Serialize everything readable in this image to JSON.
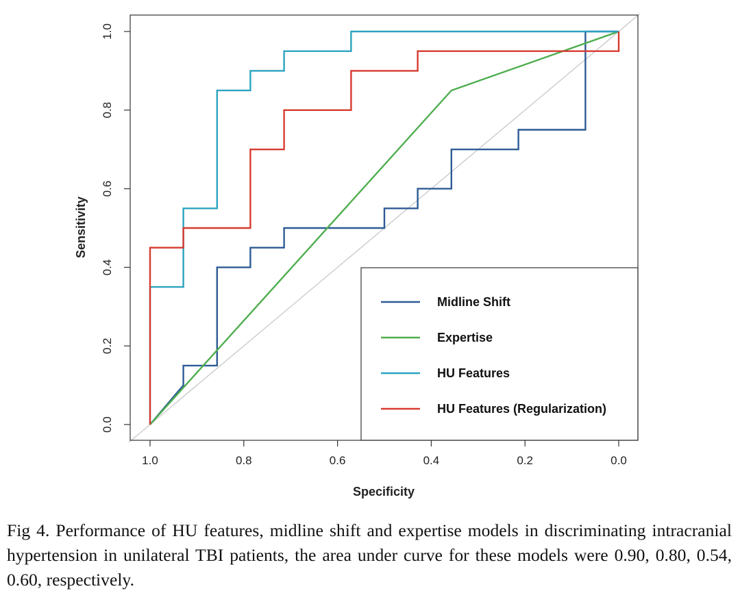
{
  "chart_data": {
    "type": "line",
    "xlabel": "Specificity",
    "ylabel": "Sensitivity",
    "xlim": [
      1.0,
      0.0
    ],
    "ylim": [
      0.0,
      1.0
    ],
    "x_reversed": true,
    "x_ticks": [
      "1.0",
      "0.8",
      "0.6",
      "0.4",
      "0.2",
      "0.0"
    ],
    "y_ticks": [
      "0.0",
      "0.2",
      "0.4",
      "0.6",
      "0.8",
      "1.0"
    ],
    "grid": false,
    "reference_line": {
      "from": [
        1.0,
        0.0
      ],
      "to": [
        0.0,
        1.0
      ],
      "color": "#c8c8c8"
    },
    "legend_position": "bottom-right",
    "series": [
      {
        "name": "Midline Shift",
        "color": "#2d5b94",
        "points": [
          [
            1.0,
            0.0
          ],
          [
            0.929,
            0.1
          ],
          [
            0.929,
            0.15
          ],
          [
            0.857,
            0.15
          ],
          [
            0.857,
            0.4
          ],
          [
            0.786,
            0.4
          ],
          [
            0.786,
            0.45
          ],
          [
            0.714,
            0.45
          ],
          [
            0.714,
            0.5
          ],
          [
            0.5,
            0.5
          ],
          [
            0.5,
            0.55
          ],
          [
            0.429,
            0.55
          ],
          [
            0.429,
            0.6
          ],
          [
            0.357,
            0.6
          ],
          [
            0.357,
            0.7
          ],
          [
            0.214,
            0.7
          ],
          [
            0.214,
            0.75
          ],
          [
            0.071,
            0.75
          ],
          [
            0.071,
            1.0
          ],
          [
            0.0,
            1.0
          ]
        ]
      },
      {
        "name": "Expertise",
        "color": "#4eae4e",
        "points": [
          [
            1.0,
            0.0
          ],
          [
            0.357,
            0.85
          ],
          [
            0.0,
            1.0
          ]
        ]
      },
      {
        "name": "HU Features",
        "color": "#2ba3c0",
        "points": [
          [
            1.0,
            0.0
          ],
          [
            1.0,
            0.35
          ],
          [
            0.929,
            0.35
          ],
          [
            0.929,
            0.55
          ],
          [
            0.857,
            0.55
          ],
          [
            0.857,
            0.85
          ],
          [
            0.786,
            0.85
          ],
          [
            0.786,
            0.9
          ],
          [
            0.714,
            0.9
          ],
          [
            0.714,
            0.95
          ],
          [
            0.571,
            0.95
          ],
          [
            0.571,
            1.0
          ],
          [
            0.0,
            1.0
          ]
        ]
      },
      {
        "name": "HU Features (Regularization)",
        "color": "#d63a2f",
        "points": [
          [
            1.0,
            0.0
          ],
          [
            1.0,
            0.45
          ],
          [
            0.929,
            0.45
          ],
          [
            0.929,
            0.5
          ],
          [
            0.786,
            0.5
          ],
          [
            0.786,
            0.7
          ],
          [
            0.714,
            0.7
          ],
          [
            0.714,
            0.8
          ],
          [
            0.571,
            0.8
          ],
          [
            0.571,
            0.9
          ],
          [
            0.429,
            0.9
          ],
          [
            0.429,
            0.95
          ],
          [
            0.0,
            0.95
          ],
          [
            0.0,
            1.0
          ]
        ]
      }
    ]
  },
  "caption": "Fig 4. Performance of HU features, midline shift and expertise models in discriminating intracranial hypertension in unilateral TBI patients, the area under curve for these models were 0.90, 0.80, 0.54, 0.60, respectively."
}
